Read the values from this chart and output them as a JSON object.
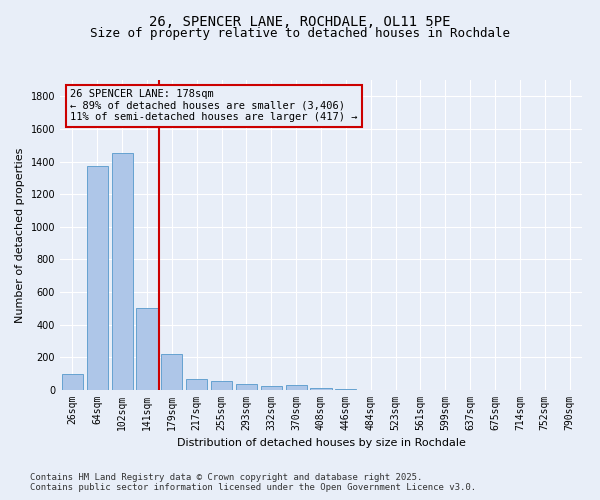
{
  "title_line1": "26, SPENCER LANE, ROCHDALE, OL11 5PE",
  "title_line2": "Size of property relative to detached houses in Rochdale",
  "xlabel": "Distribution of detached houses by size in Rochdale",
  "ylabel": "Number of detached properties",
  "categories": [
    "26sqm",
    "64sqm",
    "102sqm",
    "141sqm",
    "179sqm",
    "217sqm",
    "255sqm",
    "293sqm",
    "332sqm",
    "370sqm",
    "408sqm",
    "446sqm",
    "484sqm",
    "523sqm",
    "561sqm",
    "599sqm",
    "637sqm",
    "675sqm",
    "714sqm",
    "752sqm",
    "790sqm"
  ],
  "values": [
    100,
    1370,
    1450,
    500,
    220,
    70,
    55,
    35,
    25,
    30,
    10,
    5,
    2,
    0,
    0,
    0,
    0,
    0,
    3,
    0,
    2
  ],
  "bar_color": "#aec6e8",
  "bar_edge_color": "#5599cc",
  "vline_index": 4,
  "vline_color": "#cc0000",
  "annotation_text": "26 SPENCER LANE: 178sqm\n← 89% of detached houses are smaller (3,406)\n11% of semi-detached houses are larger (417) →",
  "ylim": [
    0,
    1900
  ],
  "yticks": [
    0,
    200,
    400,
    600,
    800,
    1000,
    1200,
    1400,
    1600,
    1800
  ],
  "background_color": "#e8eef8",
  "grid_color": "#ffffff",
  "footer_line1": "Contains HM Land Registry data © Crown copyright and database right 2025.",
  "footer_line2": "Contains public sector information licensed under the Open Government Licence v3.0.",
  "title_fontsize": 10,
  "subtitle_fontsize": 9,
  "axis_label_fontsize": 8,
  "tick_fontsize": 7,
  "annotation_fontsize": 7.5,
  "footer_fontsize": 6.5
}
